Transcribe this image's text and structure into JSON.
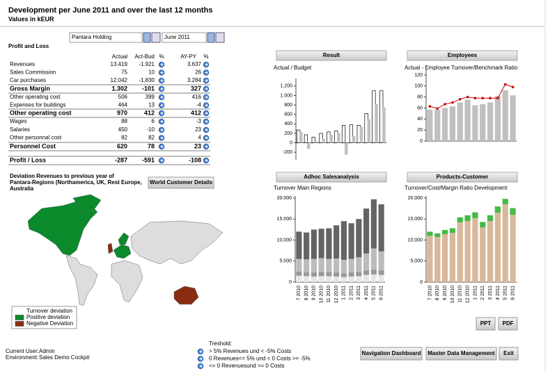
{
  "header": {
    "title": "Development per June 2011 and over the last 12 months",
    "subtitle": "Values in kEUR"
  },
  "filters": {
    "company": "Pantara Holding",
    "period": "June 2011"
  },
  "profit_and_loss": {
    "title": "Profit and Loss",
    "columns": [
      "Actual",
      "Act-Bud",
      "%",
      "AY-PY",
      "%"
    ],
    "rows": [
      {
        "label": "Revenues",
        "cells": [
          "13.419",
          "-1.921",
          "3.637"
        ],
        "bold": false
      },
      {
        "label": "Sales Commission",
        "cells": [
          "75",
          "10",
          "26"
        ],
        "bold": false
      },
      {
        "label": "Car purchases",
        "cells": [
          "12.042",
          "-1.830",
          "3.284"
        ],
        "bold": false
      },
      {
        "label": "Gross Margin",
        "cells": [
          "1.302",
          "-101",
          "327"
        ],
        "bold": true
      },
      {
        "label": "Other operating cost",
        "cells": [
          "506",
          "399",
          "416"
        ],
        "bold": false
      },
      {
        "label": "Expenses for buildings",
        "cells": [
          "464",
          "13",
          "-4"
        ],
        "bold": false
      },
      {
        "label": "Other operating cost",
        "cells": [
          "970",
          "412",
          "412"
        ],
        "bold": true
      },
      {
        "label": "Wages",
        "cells": [
          "88",
          "6",
          "-3"
        ],
        "bold": false
      },
      {
        "label": "Salaries",
        "cells": [
          "450",
          "-10",
          "23"
        ],
        "bold": false
      },
      {
        "label": "Other personnal cost",
        "cells": [
          "82",
          "82",
          "4"
        ],
        "bold": false
      },
      {
        "label": "Personnel Cost",
        "cells": [
          "620",
          "78",
          "23"
        ],
        "bold": true
      },
      {
        "label": "Profit / Loss",
        "cells": [
          "-287",
          "-591",
          "-108"
        ],
        "bold": true
      }
    ]
  },
  "map": {
    "title_lines": [
      "Deviation Revenues to previous year of",
      "Pantara-Regions (Northamerica, UK, Rest Europe,",
      "Australia"
    ],
    "button": "World Customer Details",
    "legend": {
      "title": "Turnover deviation",
      "items": [
        {
          "label": "Positive deviation",
          "color": "#0b8a2c"
        },
        {
          "label": "Negative Deviation",
          "color": "#8a2c12"
        }
      ]
    }
  },
  "chart_data": [
    {
      "type": "bar",
      "title": "Result",
      "subtitle": "Actual / Budget",
      "ylim": [
        -360,
        1360
      ],
      "yticks": [
        -200,
        0,
        200,
        400,
        600,
        800,
        {
          "value": 1000,
          "label": "1.000"
        },
        {
          "value": 1200,
          "label": "1.200"
        }
      ],
      "series": [
        {
          "color": "#ffffff",
          "edgecolor": "#000000",
          "values": [
            270,
            170,
            120,
            200,
            230,
            250,
            370,
            380,
            370,
            620,
            1100,
            1100
          ]
        },
        {
          "color": "#c0c0c0",
          "values": [
            230,
            -130,
            30,
            80,
            170,
            210,
            -250,
            140,
            340,
            500,
            820,
            750
          ]
        }
      ]
    },
    {
      "type": "combo",
      "title": "Employees",
      "subtitle": "Actual - Employee Turnover/Benchmark Ratio",
      "ylim": [
        0,
        130
      ],
      "yticks": [
        0,
        20,
        40,
        60,
        80,
        100,
        120
      ],
      "series": [
        {
          "type": "bar",
          "color": "#c0c0c0",
          "values": [
            57,
            57,
            60,
            63,
            70,
            75,
            65,
            67,
            70,
            82,
            92,
            83
          ]
        },
        {
          "type": "line",
          "color": "#cc0000",
          "values": [
            63,
            59,
            67,
            70,
            76,
            80,
            78,
            78,
            78,
            78,
            103,
            98
          ]
        }
      ]
    },
    {
      "type": "stacked_bar",
      "title": "Adhoc Salesanalysis",
      "subtitle": "Turnover Main Regions",
      "ylim": [
        0,
        20500
      ],
      "yticks": [
        0,
        {
          "value": 5000,
          "label": "5.000"
        },
        {
          "value": 10000,
          "label": "10.000"
        },
        {
          "value": 15000,
          "label": "15.000"
        },
        {
          "value": 20000,
          "label": "20.000"
        }
      ],
      "categories": [
        "7 2010",
        "8 2010",
        "9 2010",
        "10 2010",
        "11 2010",
        "12 2010",
        "1 2011",
        "2 2011",
        "3 2011",
        "4 2011",
        "5 2011",
        "6 2011"
      ],
      "series": [
        {
          "color": "#e6e6e6",
          "values": [
            1500,
            1400,
            1300,
            1400,
            1400,
            1300,
            1200,
            1300,
            1400,
            1700,
            1800,
            1700
          ]
        },
        {
          "color": "#999999",
          "values": [
            1000,
            900,
            1000,
            1000,
            1000,
            1000,
            900,
            1000,
            1000,
            1100,
            1200,
            1100
          ]
        },
        {
          "color": "#bcbcbc",
          "values": [
            3000,
            3100,
            3200,
            3300,
            3100,
            3300,
            3200,
            3200,
            3500,
            4000,
            5000,
            4500
          ]
        },
        {
          "color": "#646464",
          "values": [
            6500,
            6400,
            7000,
            7000,
            7300,
            7900,
            9200,
            8500,
            9100,
            10700,
            11700,
            11200
          ]
        }
      ]
    },
    {
      "type": "stacked_bar",
      "title": "Products-Customer",
      "subtitle": "Turnover/Cost/Margin Ratio Development",
      "ylim": [
        0,
        20500
      ],
      "yticks": [
        0,
        {
          "value": 5000,
          "label": "5.000"
        },
        {
          "value": 10000,
          "label": "10.000"
        },
        {
          "value": 15000,
          "label": "15.000"
        },
        {
          "value": 20000,
          "label": "20.000"
        }
      ],
      "categories": [
        "7 2010",
        "8 2010",
        "9 2010",
        "10 2010",
        "11 2010",
        "12 2010",
        "1 2011",
        "2 2011",
        "3 2011",
        "4 2011",
        "5 2011",
        "6 2011"
      ],
      "series": [
        {
          "color": "#d9b99b",
          "values": [
            11000,
            10700,
            11400,
            11700,
            14200,
            14500,
            15200,
            13000,
            14500,
            16500,
            18500,
            16000
          ]
        },
        {
          "color": "#44bb44",
          "values": [
            1000,
            900,
            1000,
            1100,
            1200,
            1400,
            1400,
            1300,
            1400,
            1500,
            1300,
            1600
          ]
        }
      ]
    }
  ],
  "export_buttons": [
    "PPT",
    "PDF"
  ],
  "footer": {
    "user_label": "Current User:",
    "user": "Admin",
    "environment_label": "Environment:",
    "environment": "Sales Demo Cockpit",
    "threshold": {
      "title": "Treshold:",
      "items": [
        "> 5% Revenues und < -5% Costs",
        "0 Revenues<= 5% und < 0 Costs >= -5%",
        "<= 0  Revenuesund >= 0 Costs"
      ]
    },
    "buttons": [
      "Navigation Dashboard",
      "Master Data Management",
      "Exit"
    ]
  }
}
